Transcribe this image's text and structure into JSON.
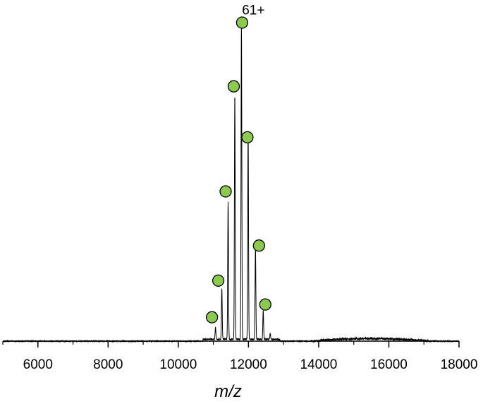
{
  "chart_data": {
    "type": "line",
    "xlabel": "m/z",
    "ylabel": "",
    "xlim": [
      5000,
      18000
    ],
    "ylim": [
      0,
      100
    ],
    "x_ticks": [
      6000,
      8000,
      10000,
      12000,
      14000,
      16000,
      18000
    ],
    "x_tick_labels": [
      "6000",
      "8000",
      "10000",
      "12000",
      "14000",
      "16000",
      "18000"
    ],
    "grid": false,
    "colors": {
      "trace": "#000000",
      "marker_fill": "#8cc94f",
      "marker_stroke": "#000000"
    },
    "series": [
      {
        "values_description": "mass spectrum",
        "peaks": [
          {
            "x": 11060,
            "y": 3.8
          },
          {
            "x": 11240,
            "y": 16
          },
          {
            "x": 11420,
            "y": 43
          },
          {
            "x": 11610,
            "y": 77
          },
          {
            "x": 11800,
            "y": 100
          },
          {
            "x": 11990,
            "y": 66
          },
          {
            "x": 12200,
            "y": 29
          },
          {
            "x": 12420,
            "y": 9
          },
          {
            "x": 12620,
            "y": 2
          }
        ],
        "baseline_bump": {
          "from": 13800,
          "to": 17200,
          "height": 0.8
        }
      }
    ],
    "markers": [
      {
        "x": 10960,
        "y": 7.5
      },
      {
        "x": 11140,
        "y": 19
      },
      {
        "x": 11350,
        "y": 47
      },
      {
        "x": 11580,
        "y": 80
      },
      {
        "x": 11820,
        "y": 100
      },
      {
        "x": 11970,
        "y": 64
      },
      {
        "x": 12300,
        "y": 30
      },
      {
        "x": 12480,
        "y": 11.5
      }
    ],
    "annotations": [
      {
        "text": "61+",
        "x": 12140,
        "y": 102.5
      }
    ]
  }
}
